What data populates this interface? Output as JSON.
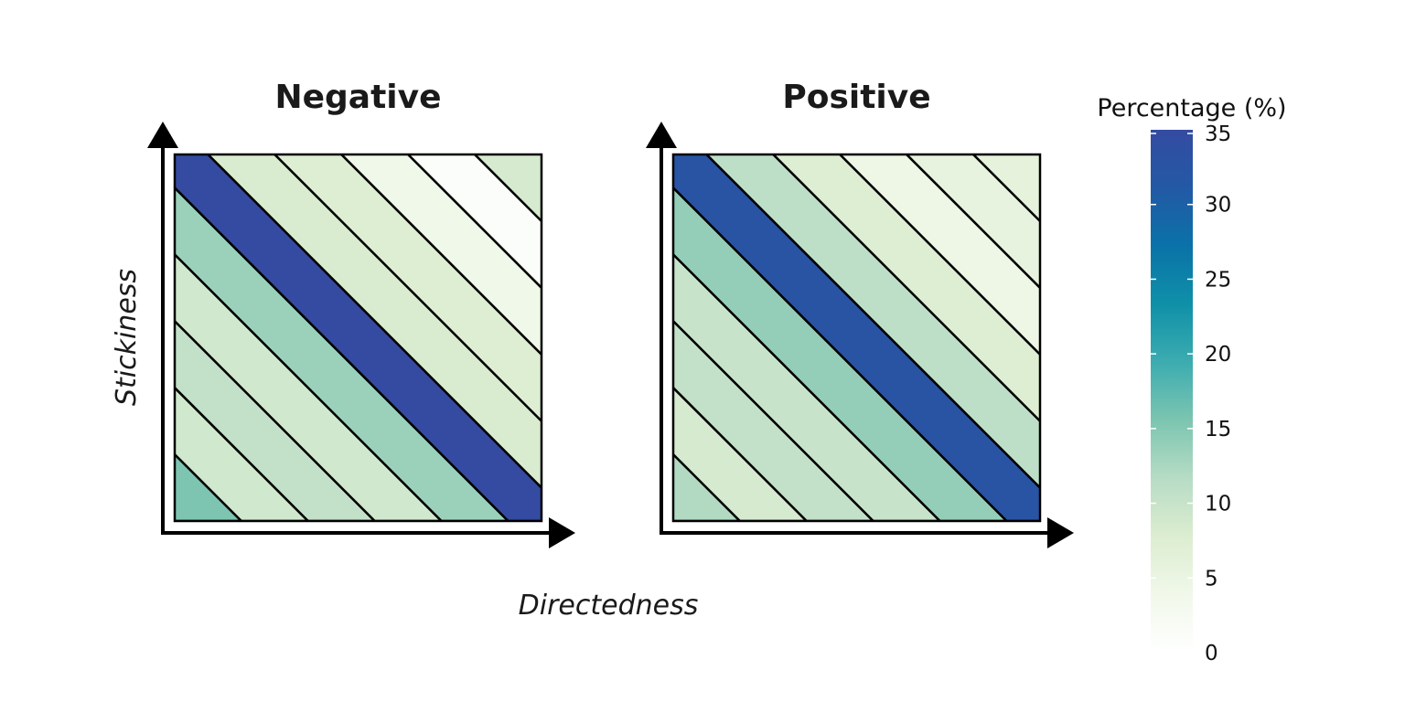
{
  "chart_data": {
    "type": "heatmap",
    "description_of_values": "Percentage (%) per diagonal band, listed from bottom-left corner band to top-right corner band",
    "panels": [
      {
        "title": "Negative",
        "bands": [
          15.5,
          9.0,
          10.5,
          9.0,
          13.5,
          35.0,
          8.0,
          7.5,
          4.0,
          1.0,
          8.5
        ]
      },
      {
        "title": "Positive",
        "bands": [
          12.0,
          8.5,
          10.5,
          10.0,
          14.0,
          32.5,
          11.0,
          7.5,
          4.5,
          5.5,
          6.0
        ]
      }
    ],
    "xlabel": "Directedness",
    "ylabel": "Stickiness",
    "legend": {
      "title": "Percentage (%)",
      "range": [
        0,
        35
      ],
      "ticks": [
        35,
        30,
        25,
        20,
        15,
        10,
        5,
        0
      ],
      "colors": [
        "#ffffff",
        "#f1f8ea",
        "#dcedd0",
        "#b7dcc5",
        "#7cc5b0",
        "#3cacb0",
        "#0f90a8",
        "#0a72a8",
        "#2359a5",
        "#344ba1"
      ],
      "placement": "right"
    }
  }
}
